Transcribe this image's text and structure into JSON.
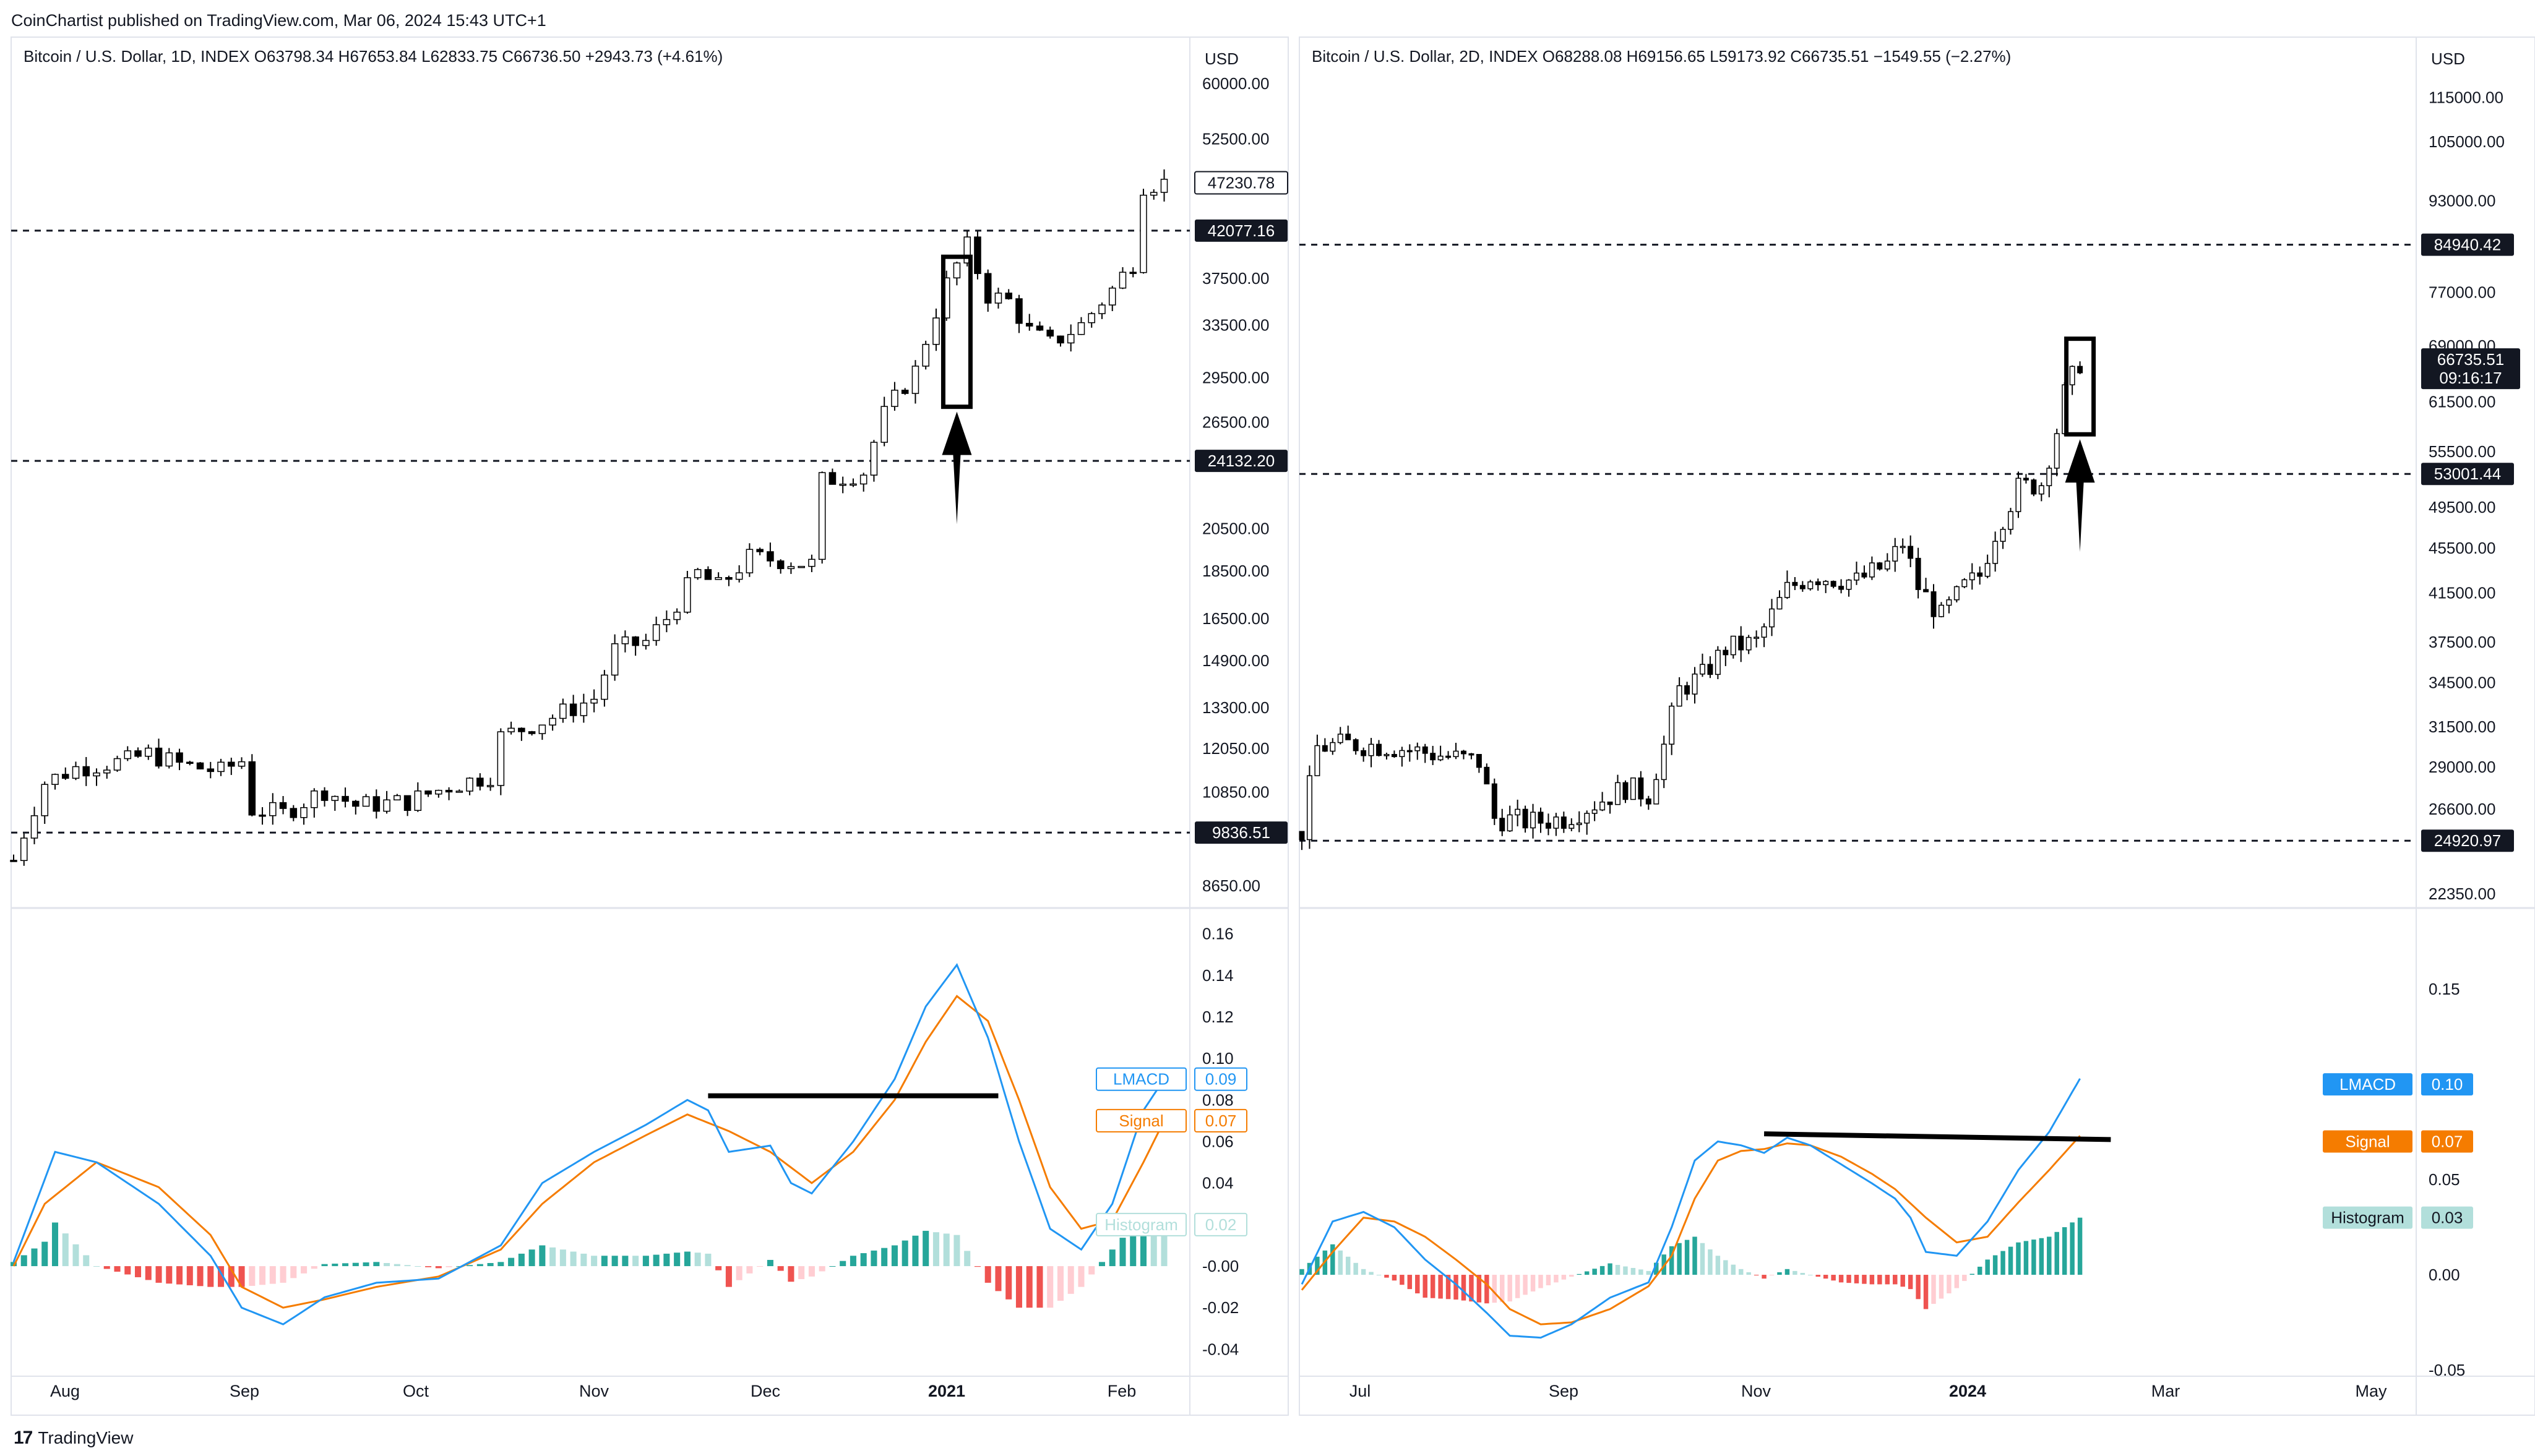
{
  "header": {
    "published": "CoinChartist published on TradingView.com, Mar 06, 2024 15:43 UTC+1"
  },
  "footer": {
    "brand": "TradingView"
  },
  "chart_data": [
    {
      "panel": "left",
      "type": "candlestick",
      "legend": "Bitcoin / U.S. Dollar, 1D, INDEX   O63798.34   H67653.84   L62833.75   C66736.50   +2943.73 (+4.61%)",
      "currency": "USD",
      "price_scale": "log",
      "ylim": [
        8200,
        64000
      ],
      "price_ticks": [
        "60000.00",
        "52500.00",
        "42077.16",
        "37500.00",
        "33500.00",
        "29500.00",
        "26500.00",
        "24132.20",
        "20500.00",
        "18500.00",
        "16500.00",
        "14900.00",
        "13300.00",
        "12050.00",
        "10850.00",
        "9836.51",
        "8650.00"
      ],
      "x_ticks": [
        "Aug",
        "Sep",
        "Oct",
        "Nov",
        "Dec",
        "2021",
        "Feb"
      ],
      "x_ticks_bold": [
        "2021"
      ],
      "horizontal_levels": [
        {
          "value": 42077.16,
          "label": "42077.16",
          "style": "dashed"
        },
        {
          "value": 24132.2,
          "label": "24132.20",
          "style": "dashed"
        },
        {
          "value": 9836.51,
          "label": "9836.51",
          "style": "dashed"
        }
      ],
      "last_price": {
        "value": 47230.78,
        "label": "47230.78"
      },
      "price_path": [
        {
          "t": 0,
          "v": 9200
        },
        {
          "t": 3,
          "v": 11100
        },
        {
          "t": 6,
          "v": 11500
        },
        {
          "t": 11,
          "v": 11700
        },
        {
          "t": 13,
          "v": 11900
        },
        {
          "t": 16,
          "v": 11600
        },
        {
          "t": 20,
          "v": 11400
        },
        {
          "t": 22,
          "v": 11700
        },
        {
          "t": 23,
          "v": 10400
        },
        {
          "t": 26,
          "v": 10300
        },
        {
          "t": 30,
          "v": 10900
        },
        {
          "t": 33,
          "v": 10500
        },
        {
          "t": 38,
          "v": 10600
        },
        {
          "t": 42,
          "v": 11000
        },
        {
          "t": 46,
          "v": 11300
        },
        {
          "t": 47,
          "v": 12400
        },
        {
          "t": 52,
          "v": 13000
        },
        {
          "t": 56,
          "v": 13600
        },
        {
          "t": 58,
          "v": 15300
        },
        {
          "t": 61,
          "v": 15600
        },
        {
          "t": 63,
          "v": 16500
        },
        {
          "t": 66,
          "v": 18400
        },
        {
          "t": 68,
          "v": 17800
        },
        {
          "t": 71,
          "v": 19100
        },
        {
          "t": 74,
          "v": 19000
        },
        {
          "t": 77,
          "v": 18800
        },
        {
          "t": 78,
          "v": 23000
        },
        {
          "t": 82,
          "v": 23500
        },
        {
          "t": 84,
          "v": 27000
        },
        {
          "t": 87,
          "v": 30000
        },
        {
          "t": 90,
          "v": 37000
        },
        {
          "t": 92,
          "v": 40500
        },
        {
          "t": 94,
          "v": 36000
        },
        {
          "t": 96,
          "v": 35500
        },
        {
          "t": 98,
          "v": 33000
        },
        {
          "t": 100,
          "v": 32000
        },
        {
          "t": 103,
          "v": 33500
        },
        {
          "t": 106,
          "v": 36500
        },
        {
          "t": 108,
          "v": 39000
        },
        {
          "t": 109,
          "v": 47000
        },
        {
          "t": 111,
          "v": 47230
        }
      ],
      "annotations": [
        "highlight-box",
        "up-arrow"
      ],
      "lmacd": {
        "ylim": [
          -0.05,
          0.17
        ],
        "ticks": [
          "0.16",
          "0.14",
          "0.12",
          "0.10",
          "0.08",
          "0.06",
          "0.04",
          "0.02",
          "-0.00",
          "-0.02",
          "-0.04"
        ],
        "legend": [
          {
            "name": "LMACD",
            "value": "0.09",
            "color": "#2196f3"
          },
          {
            "name": "Signal",
            "value": "0.07",
            "color": "#f57c00"
          },
          {
            "name": "Histogram",
            "value": "0.02",
            "color": "#b2dfdb"
          }
        ],
        "lmacd_path": [
          {
            "t": 0,
            "v": 0.002
          },
          {
            "t": 4,
            "v": 0.055
          },
          {
            "t": 8,
            "v": 0.05
          },
          {
            "t": 14,
            "v": 0.03
          },
          {
            "t": 19,
            "v": 0.005
          },
          {
            "t": 22,
            "v": -0.02
          },
          {
            "t": 26,
            "v": -0.028
          },
          {
            "t": 30,
            "v": -0.015
          },
          {
            "t": 35,
            "v": -0.008
          },
          {
            "t": 41,
            "v": -0.006
          },
          {
            "t": 47,
            "v": 0.01
          },
          {
            "t": 51,
            "v": 0.04
          },
          {
            "t": 56,
            "v": 0.055
          },
          {
            "t": 61,
            "v": 0.068
          },
          {
            "t": 65,
            "v": 0.08
          },
          {
            "t": 67,
            "v": 0.075
          },
          {
            "t": 69,
            "v": 0.055
          },
          {
            "t": 73,
            "v": 0.058
          },
          {
            "t": 75,
            "v": 0.04
          },
          {
            "t": 77,
            "v": 0.035
          },
          {
            "t": 81,
            "v": 0.06
          },
          {
            "t": 85,
            "v": 0.09
          },
          {
            "t": 88,
            "v": 0.125
          },
          {
            "t": 91,
            "v": 0.145
          },
          {
            "t": 94,
            "v": 0.11
          },
          {
            "t": 97,
            "v": 0.06
          },
          {
            "t": 100,
            "v": 0.018
          },
          {
            "t": 103,
            "v": 0.008
          },
          {
            "t": 106,
            "v": 0.03
          },
          {
            "t": 109,
            "v": 0.075
          },
          {
            "t": 111,
            "v": 0.09
          }
        ],
        "signal_path": [
          {
            "t": 0,
            "v": 0.0
          },
          {
            "t": 3,
            "v": 0.03
          },
          {
            "t": 8,
            "v": 0.05
          },
          {
            "t": 14,
            "v": 0.038
          },
          {
            "t": 19,
            "v": 0.015
          },
          {
            "t": 22,
            "v": -0.01
          },
          {
            "t": 26,
            "v": -0.02
          },
          {
            "t": 30,
            "v": -0.016
          },
          {
            "t": 35,
            "v": -0.01
          },
          {
            "t": 41,
            "v": -0.005
          },
          {
            "t": 47,
            "v": 0.008
          },
          {
            "t": 51,
            "v": 0.03
          },
          {
            "t": 56,
            "v": 0.05
          },
          {
            "t": 61,
            "v": 0.063
          },
          {
            "t": 65,
            "v": 0.073
          },
          {
            "t": 69,
            "v": 0.065
          },
          {
            "t": 73,
            "v": 0.055
          },
          {
            "t": 77,
            "v": 0.04
          },
          {
            "t": 81,
            "v": 0.055
          },
          {
            "t": 85,
            "v": 0.08
          },
          {
            "t": 88,
            "v": 0.108
          },
          {
            "t": 91,
            "v": 0.13
          },
          {
            "t": 94,
            "v": 0.118
          },
          {
            "t": 97,
            "v": 0.08
          },
          {
            "t": 100,
            "v": 0.038
          },
          {
            "t": 103,
            "v": 0.018
          },
          {
            "t": 106,
            "v": 0.022
          },
          {
            "t": 109,
            "v": 0.05
          },
          {
            "t": 111,
            "v": 0.07
          }
        ],
        "trendline": [
          {
            "t": 67,
            "v": 0.082
          },
          {
            "t": 95,
            "v": 0.082
          }
        ]
      }
    },
    {
      "panel": "right",
      "type": "candlestick",
      "legend": "Bitcoin / U.S. Dollar, 2D, INDEX   O68288.08   H69156.65   L59173.92   C66735.51   −1549.55 (−2.27%)",
      "currency": "USD",
      "price_scale": "log",
      "ylim": [
        21700,
        125000
      ],
      "price_ticks": [
        "115000.00",
        "105000.00",
        "93000.00",
        "84940.42",
        "77000.00",
        "69000.00",
        "66735.51",
        "61500.00",
        "55500.00",
        "53001.44",
        "49500.00",
        "45500.00",
        "41500.00",
        "37500.00",
        "34500.00",
        "31500.00",
        "29000.00",
        "26600.00",
        "24920.97",
        "22350.00"
      ],
      "countdown": "09:16:17",
      "x_ticks": [
        "Jul",
        "Sep",
        "Nov",
        "2024",
        "Mar",
        "May"
      ],
      "x_ticks_bold": [
        "2024"
      ],
      "horizontal_levels": [
        {
          "value": 84940.42,
          "label": "84940.42",
          "style": "dashed"
        },
        {
          "value": 53001.44,
          "label": "53001.44",
          "style": "dashed"
        },
        {
          "value": 24920.97,
          "label": "24920.97",
          "style": "dashed"
        }
      ],
      "last_price": {
        "value": 66735.51,
        "label": "66735.51"
      },
      "price_path": [
        {
          "t": 0,
          "v": 25400
        },
        {
          "t": 2,
          "v": 30200
        },
        {
          "t": 6,
          "v": 30400
        },
        {
          "t": 11,
          "v": 30300
        },
        {
          "t": 17,
          "v": 29800
        },
        {
          "t": 23,
          "v": 29300
        },
        {
          "t": 25,
          "v": 26100
        },
        {
          "t": 30,
          "v": 25900
        },
        {
          "t": 34,
          "v": 26100
        },
        {
          "t": 38,
          "v": 26900
        },
        {
          "t": 42,
          "v": 27800
        },
        {
          "t": 45,
          "v": 27400
        },
        {
          "t": 47,
          "v": 30300
        },
        {
          "t": 49,
          "v": 34000
        },
        {
          "t": 52,
          "v": 35000
        },
        {
          "t": 55,
          "v": 37000
        },
        {
          "t": 59,
          "v": 37500
        },
        {
          "t": 63,
          "v": 41800
        },
        {
          "t": 66,
          "v": 43000
        },
        {
          "t": 72,
          "v": 42500
        },
        {
          "t": 76,
          "v": 44000
        },
        {
          "t": 78,
          "v": 46000
        },
        {
          "t": 80,
          "v": 42000
        },
        {
          "t": 83,
          "v": 39500
        },
        {
          "t": 86,
          "v": 42000
        },
        {
          "t": 88,
          "v": 43000
        },
        {
          "t": 90,
          "v": 47000
        },
        {
          "t": 93,
          "v": 51500
        },
        {
          "t": 96,
          "v": 52000
        },
        {
          "t": 98,
          "v": 58000
        },
        {
          "t": 99,
          "v": 62500
        },
        {
          "t": 101,
          "v": 66700
        }
      ],
      "annotations": [
        "highlight-box",
        "up-arrow"
      ],
      "lmacd": {
        "ylim": [
          -0.05,
          0.19
        ],
        "ticks": [
          "0.15",
          "0.10",
          "0.05",
          "0.00",
          "-0.05"
        ],
        "legend": [
          {
            "name": "LMACD",
            "value": "0.10",
            "color": "#2196f3"
          },
          {
            "name": "Signal",
            "value": "0.07",
            "color": "#f57c00"
          },
          {
            "name": "Histogram",
            "value": "0.03",
            "color": "#b2dfdb"
          }
        ],
        "lmacd_path": [
          {
            "t": 0,
            "v": -0.005
          },
          {
            "t": 4,
            "v": 0.028
          },
          {
            "t": 8,
            "v": 0.033
          },
          {
            "t": 12,
            "v": 0.025
          },
          {
            "t": 16,
            "v": 0.008
          },
          {
            "t": 20,
            "v": -0.005
          },
          {
            "t": 24,
            "v": -0.02
          },
          {
            "t": 27,
            "v": -0.032
          },
          {
            "t": 31,
            "v": -0.033
          },
          {
            "t": 35,
            "v": -0.026
          },
          {
            "t": 40,
            "v": -0.012
          },
          {
            "t": 45,
            "v": -0.004
          },
          {
            "t": 48,
            "v": 0.025
          },
          {
            "t": 51,
            "v": 0.06
          },
          {
            "t": 54,
            "v": 0.07
          },
          {
            "t": 57,
            "v": 0.068
          },
          {
            "t": 60,
            "v": 0.064
          },
          {
            "t": 63,
            "v": 0.072
          },
          {
            "t": 66,
            "v": 0.068
          },
          {
            "t": 70,
            "v": 0.058
          },
          {
            "t": 74,
            "v": 0.048
          },
          {
            "t": 77,
            "v": 0.04
          },
          {
            "t": 79,
            "v": 0.03
          },
          {
            "t": 81,
            "v": 0.012
          },
          {
            "t": 85,
            "v": 0.01
          },
          {
            "t": 89,
            "v": 0.028
          },
          {
            "t": 93,
            "v": 0.055
          },
          {
            "t": 97,
            "v": 0.075
          },
          {
            "t": 101,
            "v": 0.103
          }
        ],
        "signal_path": [
          {
            "t": 0,
            "v": -0.008
          },
          {
            "t": 4,
            "v": 0.012
          },
          {
            "t": 8,
            "v": 0.03
          },
          {
            "t": 12,
            "v": 0.028
          },
          {
            "t": 16,
            "v": 0.02
          },
          {
            "t": 20,
            "v": 0.008
          },
          {
            "t": 24,
            "v": -0.005
          },
          {
            "t": 27,
            "v": -0.018
          },
          {
            "t": 31,
            "v": -0.026
          },
          {
            "t": 35,
            "v": -0.025
          },
          {
            "t": 40,
            "v": -0.018
          },
          {
            "t": 45,
            "v": -0.006
          },
          {
            "t": 48,
            "v": 0.01
          },
          {
            "t": 51,
            "v": 0.04
          },
          {
            "t": 54,
            "v": 0.06
          },
          {
            "t": 57,
            "v": 0.065
          },
          {
            "t": 60,
            "v": 0.066
          },
          {
            "t": 63,
            "v": 0.069
          },
          {
            "t": 66,
            "v": 0.068
          },
          {
            "t": 70,
            "v": 0.062
          },
          {
            "t": 74,
            "v": 0.053
          },
          {
            "t": 77,
            "v": 0.045
          },
          {
            "t": 81,
            "v": 0.03
          },
          {
            "t": 85,
            "v": 0.017
          },
          {
            "t": 89,
            "v": 0.02
          },
          {
            "t": 93,
            "v": 0.038
          },
          {
            "t": 97,
            "v": 0.055
          },
          {
            "t": 101,
            "v": 0.073
          }
        ],
        "trendline": [
          {
            "t": 60,
            "v": 0.074
          },
          {
            "t": 105,
            "v": 0.071
          }
        ]
      }
    }
  ]
}
